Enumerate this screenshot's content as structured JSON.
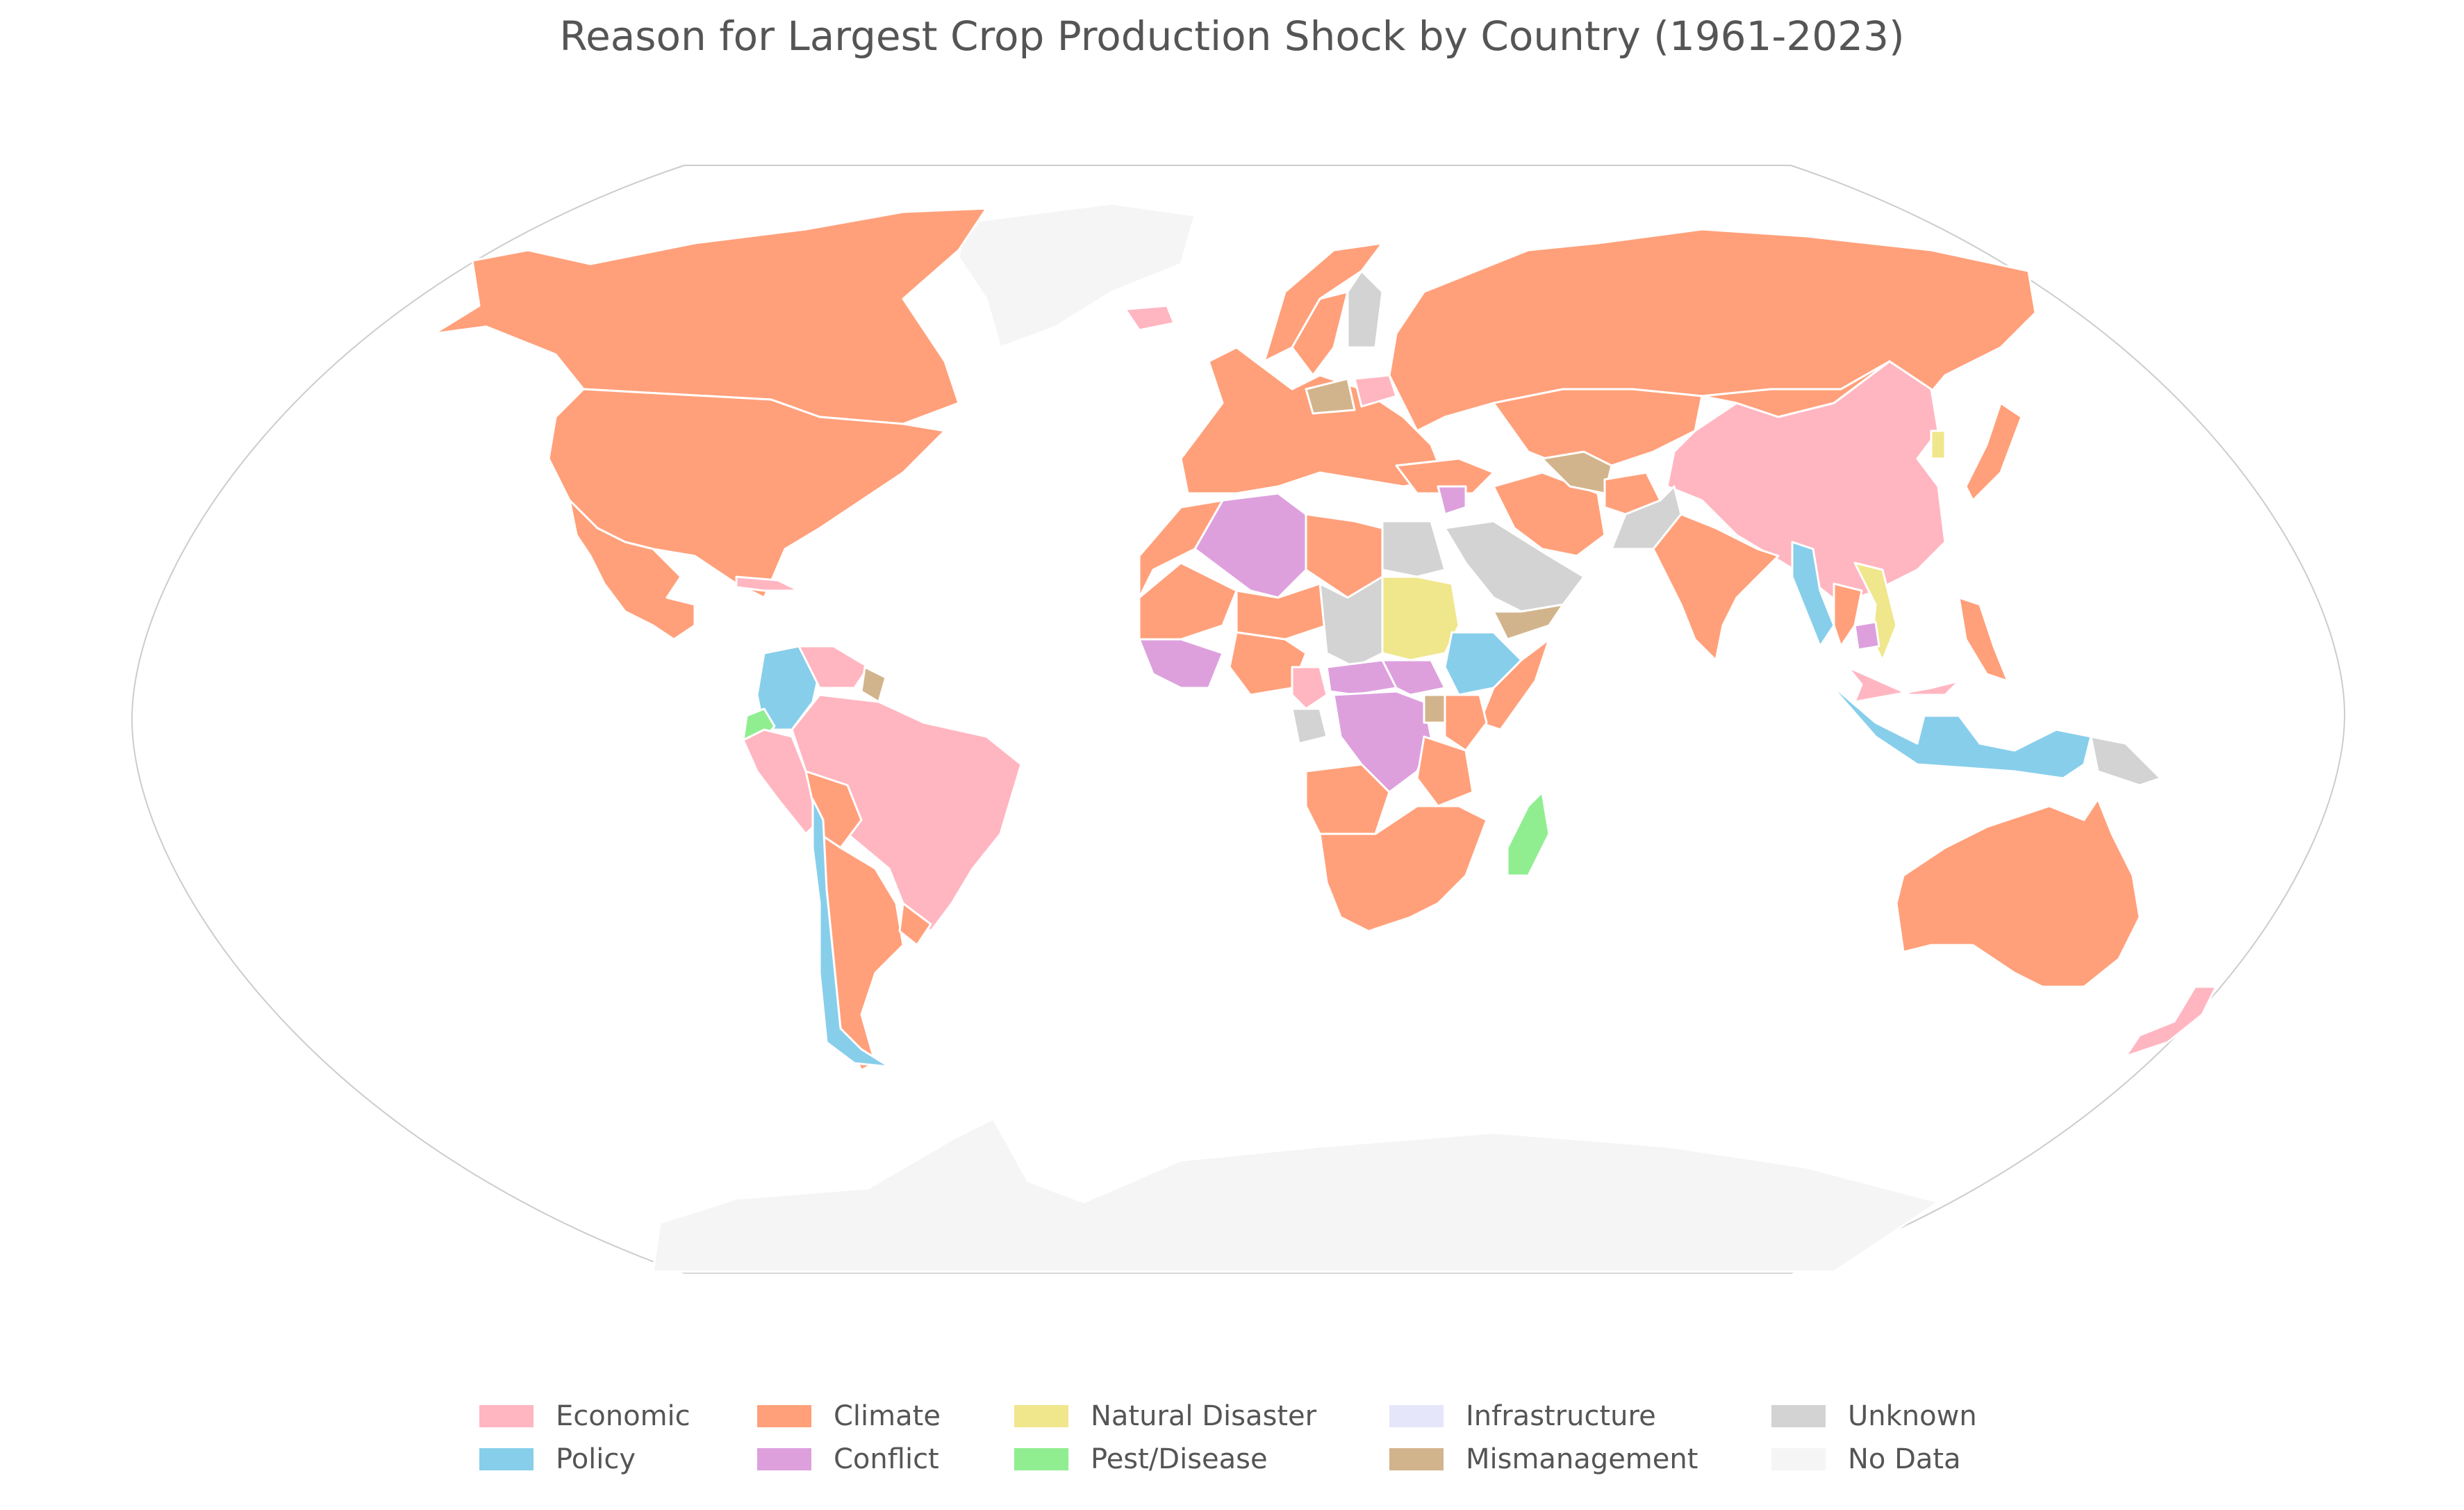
{
  "title": "Reason for Largest Crop Production Shock by Country (1961-2023)",
  "colors": {
    "Economic": "#ffb6c1",
    "Policy": "#87ceeb",
    "Climate": "#ffa07a",
    "Conflict": "#dda0dd",
    "Natural Disaster": "#f0e68c",
    "Pest/Disease": "#90ee90",
    "Infrastructure": "#e6e6fa",
    "Mismanagement": "#d2b48c",
    "Unknown": "#d3d3d3",
    "No Data": "#f5f5f5",
    "border": "#ffffff",
    "frame": "#cccccc"
  },
  "legend": {
    "columns": [
      [
        "Economic",
        "Policy"
      ],
      [
        "Climate",
        "Conflict"
      ],
      [
        "Natural Disaster",
        "Pest/Disease"
      ],
      [
        "Infrastructure",
        "Mismanagement"
      ],
      [
        "Unknown",
        "No Data"
      ]
    ]
  },
  "regions": [
    {
      "name": "Greenland",
      "category": "No Data"
    },
    {
      "name": "Antarctica",
      "category": "No Data"
    },
    {
      "name": "Canada",
      "category": "Climate"
    },
    {
      "name": "United States",
      "category": "Climate"
    },
    {
      "name": "Mexico",
      "category": "Climate"
    },
    {
      "name": "Cuba",
      "category": "Economic"
    },
    {
      "name": "Colombia",
      "category": "Policy"
    },
    {
      "name": "Ecuador",
      "category": "Pest/Disease"
    },
    {
      "name": "Venezuela",
      "category": "Economic"
    },
    {
      "name": "Guyana",
      "category": "Mismanagement"
    },
    {
      "name": "Peru",
      "category": "Economic"
    },
    {
      "name": "Brazil",
      "category": "Economic"
    },
    {
      "name": "Bolivia",
      "category": "Climate"
    },
    {
      "name": "Argentina",
      "category": "Climate"
    },
    {
      "name": "Chile",
      "category": "Policy"
    },
    {
      "name": "Uruguay",
      "category": "Climate"
    },
    {
      "name": "Iceland",
      "category": "Economic"
    },
    {
      "name": "Norway",
      "category": "Climate"
    },
    {
      "name": "Sweden",
      "category": "Climate"
    },
    {
      "name": "Finland",
      "category": "Unknown"
    },
    {
      "name": "Europe",
      "category": "Climate"
    },
    {
      "name": "Poland",
      "category": "Mismanagement"
    },
    {
      "name": "Belarus",
      "category": "Economic"
    },
    {
      "name": "Russia",
      "category": "Climate"
    },
    {
      "name": "Kazakhstan",
      "category": "Climate"
    },
    {
      "name": "China",
      "category": "Economic"
    },
    {
      "name": "Mongolia",
      "category": "Climate"
    },
    {
      "name": "North Korea",
      "category": "Natural Disaster"
    },
    {
      "name": "Japan",
      "category": "Climate"
    },
    {
      "name": "Turkey",
      "category": "Climate"
    },
    {
      "name": "Iran",
      "category": "Climate"
    },
    {
      "name": "Turkmenistan",
      "category": "Mismanagement"
    },
    {
      "name": "Afghanistan",
      "category": "Climate"
    },
    {
      "name": "Pakistan",
      "category": "Unknown"
    },
    {
      "name": "India",
      "category": "Climate"
    },
    {
      "name": "Myanmar",
      "category": "Policy"
    },
    {
      "name": "Thailand",
      "category": "Climate"
    },
    {
      "name": "Vietnam",
      "category": "Natural Disaster"
    },
    {
      "name": "Cambodia",
      "category": "Conflict"
    },
    {
      "name": "Malaysia",
      "category": "Economic"
    },
    {
      "name": "Indonesia",
      "category": "Policy"
    },
    {
      "name": "Papua New Guinea",
      "category": "Unknown"
    },
    {
      "name": "Philippines",
      "category": "Climate"
    },
    {
      "name": "Australia",
      "category": "Climate"
    },
    {
      "name": "New Zealand",
      "category": "Economic"
    },
    {
      "name": "Saudi Arabia",
      "category": "Unknown"
    },
    {
      "name": "Yemen",
      "category": "Mismanagement"
    },
    {
      "name": "Syria",
      "category": "Conflict"
    },
    {
      "name": "Egypt",
      "category": "Unknown"
    },
    {
      "name": "Libya",
      "category": "Climate"
    },
    {
      "name": "Algeria",
      "category": "Conflict"
    },
    {
      "name": "Morocco",
      "category": "Climate"
    },
    {
      "name": "Mali",
      "category": "Climate"
    },
    {
      "name": "Niger",
      "category": "Climate"
    },
    {
      "name": "Chad",
      "category": "Unknown"
    },
    {
      "name": "Sudan",
      "category": "Natural Disaster"
    },
    {
      "name": "Ethiopia",
      "category": "Policy"
    },
    {
      "name": "Somalia",
      "category": "Climate"
    },
    {
      "name": "Nigeria",
      "category": "Climate"
    },
    {
      "name": "Liberia",
      "category": "Conflict"
    },
    {
      "name": "Cameroon",
      "category": "Economic"
    },
    {
      "name": "Central African Republic",
      "category": "Conflict"
    },
    {
      "name": "South Sudan",
      "category": "Conflict"
    },
    {
      "name": "Congo DR",
      "category": "Conflict"
    },
    {
      "name": "Gabon",
      "category": "Unknown"
    },
    {
      "name": "Uganda",
      "category": "Mismanagement"
    },
    {
      "name": "Kenya",
      "category": "Climate"
    },
    {
      "name": "Tanzania",
      "category": "Climate"
    },
    {
      "name": "Angola",
      "category": "Climate"
    },
    {
      "name": "Southern Africa",
      "category": "Climate"
    },
    {
      "name": "Madagascar",
      "category": "Pest/Disease"
    }
  ]
}
